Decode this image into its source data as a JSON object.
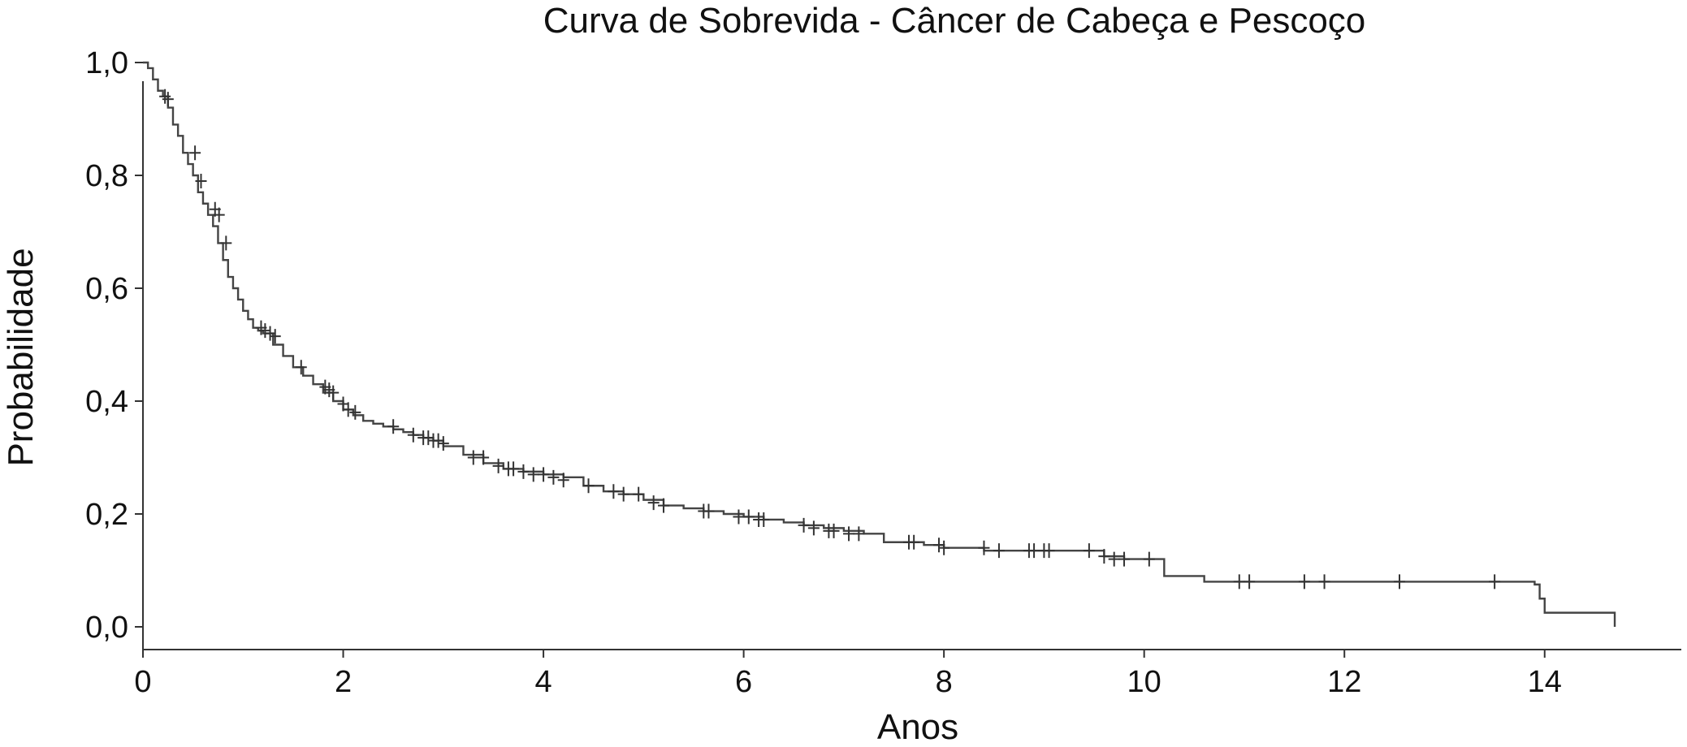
{
  "chart_data": {
    "type": "line",
    "title": "Curva de Sobrevida - Câncer de Cabeça e Pescoço",
    "xlabel": "Anos",
    "ylabel": "Probabilidade",
    "xlim": [
      0,
      15.3
    ],
    "ylim": [
      0,
      1.0
    ],
    "x_ticks": [
      0,
      2,
      4,
      6,
      8,
      10,
      12,
      14
    ],
    "x_tick_labels": [
      "0",
      "2",
      "4",
      "6",
      "8",
      "10",
      "12",
      "14"
    ],
    "y_ticks": [
      0,
      0.2,
      0.4,
      0.6,
      0.8,
      1.0
    ],
    "y_tick_labels": [
      "0,0",
      "0,2",
      "0,4",
      "0,6",
      "0,8",
      "1,0"
    ],
    "grid": false,
    "line_color": "#444444",
    "series": [
      {
        "x": [
          0,
          0.05,
          0.1,
          0.15,
          0.2,
          0.25,
          0.3,
          0.35,
          0.4,
          0.45,
          0.5,
          0.55,
          0.6,
          0.65,
          0.7,
          0.75,
          0.8,
          0.85,
          0.9,
          0.95,
          1.0,
          1.05,
          1.1,
          1.15,
          1.2,
          1.3,
          1.4,
          1.5,
          1.6,
          1.7,
          1.8,
          1.9,
          2.0,
          2.1,
          2.2,
          2.3,
          2.4,
          2.5,
          2.6,
          2.7,
          2.8,
          2.9,
          3.0,
          3.2,
          3.4,
          3.6,
          3.8,
          4.0,
          4.2,
          4.4,
          4.6,
          4.8,
          5.0,
          5.2,
          5.4,
          5.6,
          5.8,
          6.0,
          6.2,
          6.4,
          6.6,
          6.8,
          7.0,
          7.2,
          7.4,
          7.6,
          7.8,
          8.0,
          8.2,
          8.4,
          8.6,
          8.8,
          9.0,
          9.2,
          9.4,
          9.6,
          9.8,
          10.0,
          10.2,
          10.4,
          10.6,
          10.8,
          11.0,
          11.5,
          12.0,
          12.5,
          13.0,
          13.5,
          13.9,
          13.95,
          14.0,
          14.5,
          14.7
        ],
        "y": [
          1.0,
          0.99,
          0.97,
          0.95,
          0.94,
          0.92,
          0.89,
          0.87,
          0.84,
          0.82,
          0.8,
          0.77,
          0.75,
          0.73,
          0.71,
          0.68,
          0.65,
          0.62,
          0.6,
          0.58,
          0.56,
          0.545,
          0.53,
          0.525,
          0.52,
          0.5,
          0.48,
          0.46,
          0.445,
          0.43,
          0.415,
          0.4,
          0.385,
          0.375,
          0.365,
          0.36,
          0.355,
          0.35,
          0.345,
          0.34,
          0.335,
          0.33,
          0.32,
          0.305,
          0.29,
          0.28,
          0.275,
          0.27,
          0.265,
          0.25,
          0.24,
          0.235,
          0.225,
          0.215,
          0.21,
          0.205,
          0.2,
          0.195,
          0.19,
          0.185,
          0.18,
          0.175,
          0.17,
          0.165,
          0.15,
          0.15,
          0.145,
          0.14,
          0.14,
          0.135,
          0.135,
          0.135,
          0.135,
          0.135,
          0.135,
          0.125,
          0.12,
          0.12,
          0.09,
          0.09,
          0.08,
          0.08,
          0.08,
          0.08,
          0.08,
          0.08,
          0.08,
          0.08,
          0.075,
          0.05,
          0.025,
          0.025,
          0.0
        ]
      }
    ],
    "censored": {
      "x": [
        0.22,
        0.25,
        0.52,
        0.58,
        0.72,
        0.76,
        0.83,
        1.18,
        1.22,
        1.27,
        1.32,
        1.58,
        1.82,
        1.86,
        1.9,
        2.0,
        2.05,
        2.12,
        2.5,
        2.7,
        2.8,
        2.85,
        2.9,
        2.95,
        3.0,
        3.3,
        3.4,
        3.55,
        3.65,
        3.7,
        3.8,
        3.9,
        4.0,
        4.1,
        4.2,
        4.45,
        4.7,
        4.8,
        4.95,
        5.1,
        5.2,
        5.6,
        5.65,
        5.95,
        6.05,
        6.15,
        6.2,
        6.6,
        6.7,
        6.85,
        6.9,
        7.05,
        7.15,
        7.65,
        7.7,
        7.95,
        8.0,
        8.4,
        8.55,
        8.85,
        8.9,
        9.0,
        9.05,
        9.45,
        9.6,
        9.7,
        9.8,
        10.05,
        10.95,
        11.05,
        11.6,
        11.8,
        12.55,
        13.5
      ],
      "y": [
        0.94,
        0.935,
        0.84,
        0.79,
        0.74,
        0.73,
        0.68,
        0.53,
        0.525,
        0.52,
        0.515,
        0.46,
        0.425,
        0.42,
        0.415,
        0.395,
        0.385,
        0.38,
        0.355,
        0.34,
        0.335,
        0.335,
        0.33,
        0.33,
        0.325,
        0.3,
        0.3,
        0.285,
        0.28,
        0.28,
        0.275,
        0.27,
        0.27,
        0.265,
        0.26,
        0.25,
        0.24,
        0.235,
        0.235,
        0.22,
        0.215,
        0.205,
        0.205,
        0.195,
        0.195,
        0.19,
        0.19,
        0.18,
        0.175,
        0.17,
        0.17,
        0.165,
        0.165,
        0.15,
        0.15,
        0.145,
        0.14,
        0.14,
        0.135,
        0.135,
        0.135,
        0.135,
        0.135,
        0.135,
        0.125,
        0.12,
        0.12,
        0.12,
        0.08,
        0.08,
        0.08,
        0.08,
        0.08,
        0.08
      ]
    }
  }
}
